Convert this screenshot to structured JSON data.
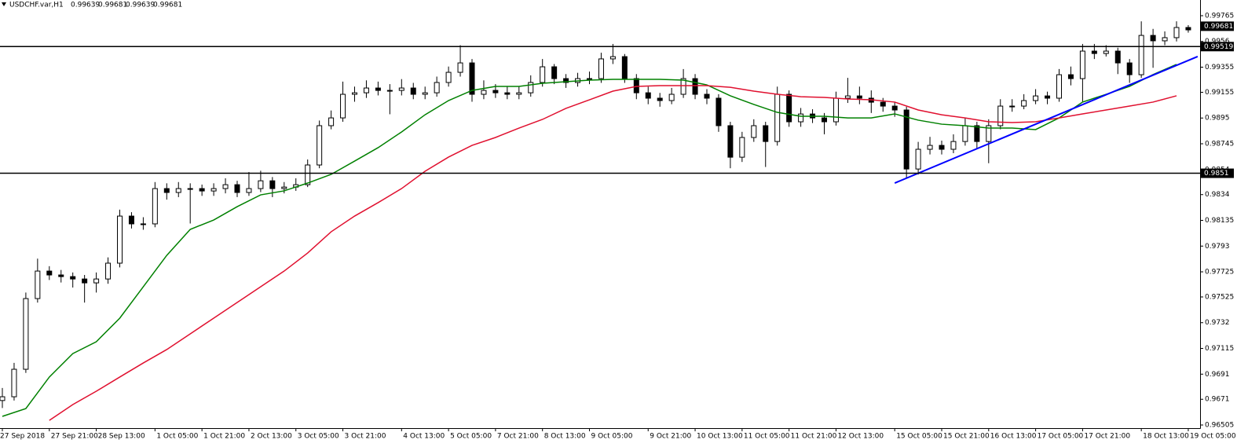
{
  "chart_data": {
    "type": "candlestick",
    "title": "USDCHF.var,H1",
    "title_values": [
      0.99639,
      0.99681,
      0.99639,
      0.99681
    ],
    "categories": [
      "27 Sep 2018",
      null,
      null,
      null,
      "27 Sep 21:00",
      null,
      null,
      null,
      "28 Sep 13:00",
      null,
      null,
      null,
      null,
      "1 Oct 05:00",
      null,
      null,
      null,
      "1 Oct 21:00",
      null,
      null,
      null,
      "2 Oct 13:00",
      null,
      null,
      null,
      "3 Oct 05:00",
      null,
      null,
      null,
      "3 Oct 21:00",
      null,
      null,
      null,
      null,
      "4 Oct 13:00",
      null,
      null,
      null,
      "5 Oct 05:00",
      null,
      null,
      null,
      "7 Oct 21:00",
      null,
      null,
      null,
      "8 Oct 13:00",
      null,
      null,
      null,
      "9 Oct 05:00",
      null,
      null,
      null,
      null,
      "9 Oct 21:00",
      null,
      null,
      null,
      "10 Oct 13:00",
      null,
      null,
      null,
      "11 Oct 05:00",
      null,
      null,
      null,
      "11 Oct 21:00",
      null,
      null,
      null,
      "12 Oct 13:00",
      null,
      null,
      null,
      null,
      "15 Oct 05:00",
      null,
      null,
      null,
      "15 Oct 21:00",
      null,
      null,
      null,
      "16 Oct 13:00",
      null,
      null,
      null,
      "17 Oct 05:00",
      null,
      null,
      null,
      "17 Oct 21:00",
      null,
      null,
      null,
      null,
      "18 Oct 13:00",
      null,
      null,
      null,
      "19 Oct 05:00"
    ],
    "open": [
      0.967,
      0.9673,
      0.96949,
      0.97512,
      0.97731,
      0.977,
      0.97687,
      0.97668,
      0.97637,
      0.97668,
      0.97794,
      0.98169,
      0.98107,
      0.98107,
      0.98388,
      0.98357,
      0.98388,
      0.98388,
      0.98369,
      0.98388,
      0.98419,
      0.98357,
      0.98388,
      0.9845,
      0.98388,
      0.984,
      0.98419,
      0.98576,
      0.98889,
      0.98951,
      0.99139,
      0.99151,
      0.99189,
      0.9917,
      0.9917,
      0.99189,
      0.99139,
      0.99151,
      0.99233,
      0.99314,
      0.99389,
      0.99139,
      0.9917,
      0.99151,
      0.99139,
      0.99151,
      0.99233,
      0.99358,
      0.99264,
      0.99233,
      0.99264,
      0.99264,
      0.99421,
      0.99439,
      0.99264,
      0.99151,
      0.99108,
      0.99089,
      0.99139,
      0.99264,
      0.99139,
      0.99108,
      0.98889,
      0.98638,
      0.98795,
      0.98889,
      0.98763,
      0.99139,
      0.9892,
      0.98982,
      0.98951,
      0.9892,
      0.99108,
      0.99126,
      0.99108,
      0.99076,
      0.99045,
      0.99014,
      0.98544,
      0.98701,
      0.98732,
      0.98701,
      0.98763,
      0.98889,
      0.98763,
      0.98889,
      0.99045,
      0.99045,
      0.99089,
      0.99126,
      0.99108,
      0.99295,
      0.99264,
      0.99483,
      0.99464,
      0.99483,
      0.99389,
      0.99295,
      0.99608,
      0.99565,
      0.9959,
      0.99671
    ],
    "high": [
      0.968,
      0.97,
      0.9756,
      0.9783,
      0.9777,
      0.9774,
      0.9772,
      0.977,
      0.9772,
      0.9784,
      0.9822,
      0.982,
      0.9816,
      0.9844,
      0.9843,
      0.9844,
      0.9843,
      0.9842,
      0.9843,
      0.9847,
      0.9845,
      0.9852,
      0.9853,
      0.9848,
      0.9844,
      0.9847,
      0.9862,
      0.9893,
      0.9901,
      0.9924,
      0.992,
      0.9925,
      0.9924,
      0.9922,
      0.9926,
      0.9923,
      0.992,
      0.9928,
      0.9936,
      0.9953,
      0.9942,
      0.9925,
      0.9922,
      0.992,
      0.992,
      0.9929,
      0.9942,
      0.9938,
      0.993,
      0.9931,
      0.9932,
      0.9947,
      0.9954,
      0.9946,
      0.993,
      0.992,
      0.9915,
      0.9919,
      0.9934,
      0.993,
      0.9918,
      0.9914,
      0.9892,
      0.9884,
      0.9894,
      0.9892,
      0.992,
      0.9917,
      0.9903,
      0.9902,
      0.9899,
      0.9916,
      0.9927,
      0.992,
      0.9917,
      0.9911,
      0.9908,
      0.9904,
      0.9876,
      0.988,
      0.9877,
      0.9882,
      0.9895,
      0.9892,
      0.9894,
      0.991,
      0.991,
      0.9914,
      0.9918,
      0.9916,
      0.9934,
      0.9936,
      0.9954,
      0.9954,
      0.9953,
      0.9951,
      0.9942,
      0.9972,
      0.9966,
      0.9964,
      0.9972,
      0.9969
    ],
    "low": [
      0.9664,
      0.967,
      0.9692,
      0.9748,
      0.9766,
      0.9764,
      0.976,
      0.9748,
      0.9756,
      0.9763,
      0.9776,
      0.9807,
      0.9806,
      0.9808,
      0.983,
      0.9832,
      0.9811,
      0.9833,
      0.9833,
      0.9835,
      0.9832,
      0.9833,
      0.9836,
      0.9832,
      0.9835,
      0.9837,
      0.984,
      0.9855,
      0.9886,
      0.9892,
      0.9908,
      0.9911,
      0.9913,
      0.9898,
      0.9913,
      0.991,
      0.991,
      0.9912,
      0.992,
      0.9928,
      0.9908,
      0.991,
      0.9911,
      0.991,
      0.991,
      0.9912,
      0.992,
      0.9922,
      0.9919,
      0.992,
      0.9922,
      0.9923,
      0.9938,
      0.9923,
      0.991,
      0.9906,
      0.9904,
      0.9906,
      0.9911,
      0.991,
      0.9906,
      0.9884,
      0.9855,
      0.986,
      0.9876,
      0.9856,
      0.9873,
      0.9888,
      0.9888,
      0.9891,
      0.9882,
      0.9889,
      0.9907,
      0.9906,
      0.9899,
      0.99,
      0.9896,
      0.9847,
      0.985,
      0.9866,
      0.9866,
      0.9867,
      0.9873,
      0.9871,
      0.9859,
      0.9886,
      0.99,
      0.9902,
      0.9906,
      0.9906,
      0.9908,
      0.9921,
      0.9908,
      0.9942,
      0.9944,
      0.993,
      0.9923,
      0.9927,
      0.9935,
      0.9953,
      0.9956,
      0.9963
    ],
    "close": [
      0.9673,
      0.96949,
      0.97512,
      0.97731,
      0.977,
      0.97687,
      0.97668,
      0.97637,
      0.97668,
      0.97794,
      0.98169,
      0.98107,
      0.98107,
      0.98388,
      0.98357,
      0.98388,
      0.98388,
      0.98369,
      0.98388,
      0.98419,
      0.98357,
      0.98388,
      0.9845,
      0.98388,
      0.984,
      0.98419,
      0.98576,
      0.98889,
      0.98951,
      0.99139,
      0.99151,
      0.99189,
      0.9917,
      0.9917,
      0.99189,
      0.99139,
      0.99151,
      0.99233,
      0.99314,
      0.99389,
      0.99139,
      0.9917,
      0.99151,
      0.99139,
      0.99151,
      0.99233,
      0.99358,
      0.99264,
      0.99233,
      0.99264,
      0.99264,
      0.99421,
      0.99439,
      0.99264,
      0.99151,
      0.99108,
      0.99089,
      0.99139,
      0.99264,
      0.99139,
      0.99108,
      0.98889,
      0.98638,
      0.98795,
      0.98889,
      0.98763,
      0.99139,
      0.9892,
      0.98982,
      0.98951,
      0.9892,
      0.99108,
      0.99126,
      0.99108,
      0.99076,
      0.99045,
      0.99014,
      0.98544,
      0.98701,
      0.98732,
      0.98701,
      0.98763,
      0.98889,
      0.98763,
      0.98889,
      0.99045,
      0.99045,
      0.99089,
      0.99126,
      0.99108,
      0.99295,
      0.99264,
      0.99483,
      0.99464,
      0.99483,
      0.99389,
      0.99295,
      0.99608,
      0.99565,
      0.9959,
      0.99671,
      0.99652
    ],
    "lines": [
      {
        "color": "#008000",
        "x": [
          0,
          2,
          4,
          6,
          8,
          10,
          12,
          14,
          16,
          18,
          20,
          22,
          24,
          26,
          28,
          30,
          32,
          34,
          36,
          38,
          40,
          42,
          44,
          46,
          48,
          50,
          52,
          54,
          56,
          58,
          60,
          62,
          64,
          66,
          68,
          70,
          72,
          74,
          76,
          78,
          80,
          82,
          84,
          86,
          88,
          90,
          92,
          94,
          96,
          98,
          100
        ],
        "values": [
          0.96574,
          0.96636,
          0.96887,
          0.97074,
          0.97168,
          0.97356,
          0.97606,
          0.97856,
          0.98063,
          0.98138,
          0.98244,
          0.98338,
          0.9837,
          0.98432,
          0.98501,
          0.98607,
          0.98714,
          0.98839,
          0.98976,
          0.99089,
          0.9917,
          0.99202,
          0.99202,
          0.99227,
          0.99239,
          0.99252,
          0.99258,
          0.99258,
          0.99258,
          0.99252,
          0.99214,
          0.99127,
          0.99058,
          0.98995,
          0.98964,
          0.98964,
          0.98951,
          0.98951,
          0.98983,
          0.98933,
          0.98901,
          0.98889,
          0.9887,
          0.9887,
          0.98858,
          0.98951,
          0.99077,
          0.99139,
          0.99202,
          0.99296,
          0.99377
        ]
      },
      {
        "color": "#e0102f",
        "x": [
          4,
          6,
          8,
          10,
          12,
          14,
          16,
          18,
          20,
          22,
          24,
          26,
          28,
          30,
          32,
          34,
          36,
          38,
          40,
          42,
          44,
          46,
          48,
          50,
          52,
          54,
          56,
          58,
          60,
          62,
          64,
          66,
          68,
          70,
          72,
          74,
          76,
          78,
          80,
          82,
          84,
          86,
          88,
          90,
          92,
          94,
          96,
          98,
          100
        ],
        "values": [
          0.96542,
          0.96668,
          0.96774,
          0.96887,
          0.96999,
          0.97106,
          0.97231,
          0.97356,
          0.97481,
          0.97606,
          0.97731,
          0.97875,
          0.98044,
          0.98169,
          0.98276,
          0.98388,
          0.98526,
          0.98639,
          0.98732,
          0.98795,
          0.9887,
          0.98939,
          0.99027,
          0.99095,
          0.99164,
          0.99202,
          0.99208,
          0.99208,
          0.99208,
          0.99195,
          0.99164,
          0.99139,
          0.9912,
          0.99114,
          0.99102,
          0.99095,
          0.99077,
          0.99014,
          0.98976,
          0.98951,
          0.9892,
          0.98914,
          0.9892,
          0.98951,
          0.98983,
          0.99014,
          0.99045,
          0.99077,
          0.99127
        ]
      }
    ],
    "trendline": {
      "color": "#0000ff",
      "x": [
        76,
        101.8
      ],
      "values": [
        0.98432,
        0.9944
      ]
    },
    "levels": [
      0.99519,
      0.9851
    ],
    "last_price": 0.99681,
    "ylim": [
      0.9648,
      0.9989
    ],
    "yticks": [
      0.99765,
      0.9956,
      0.99355,
      0.99155,
      0.9895,
      0.98745,
      0.9854,
      0.9834,
      0.98135,
      0.9793,
      0.97725,
      0.97525,
      0.9732,
      0.97115,
      0.9691,
      0.9671,
      0.96505
    ]
  }
}
